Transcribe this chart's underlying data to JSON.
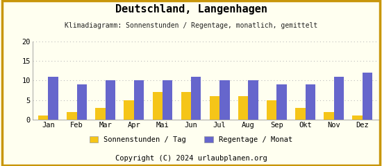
{
  "title": "Deutschland, Langenhagen",
  "subtitle": "Klimadiagramm: Sonnenstunden / Regentage, monatlich, gemittelt",
  "copyright": "Copyright (C) 2024 urlaubplanen.org",
  "months": [
    "Jan",
    "Feb",
    "Mar",
    "Apr",
    "Mai",
    "Jun",
    "Jul",
    "Aug",
    "Sep",
    "Okt",
    "Nov",
    "Dez"
  ],
  "sonnenstunden": [
    1,
    2,
    3,
    5,
    7,
    7,
    6,
    6,
    5,
    3,
    2,
    1
  ],
  "regentage": [
    11,
    9,
    10,
    10,
    10,
    11,
    10,
    10,
    9,
    9,
    11,
    12
  ],
  "bar_color_sonnen": "#F5C518",
  "bar_color_regen": "#6666CC",
  "background_color": "#FFFFF0",
  "footer_bg_color": "#E8A800",
  "border_color": "#C8960A",
  "grid_color": "#BBBBBB",
  "ylim": [
    0,
    20
  ],
  "yticks": [
    0,
    5,
    10,
    15,
    20
  ],
  "legend_sonnen": "Sonnenstunden / Tag",
  "legend_regen": "Regentage / Monat",
  "title_fontsize": 11,
  "subtitle_fontsize": 7,
  "axis_fontsize": 7.5,
  "legend_fontsize": 7.5,
  "copyright_fontsize": 7.5,
  "bar_width": 0.35
}
